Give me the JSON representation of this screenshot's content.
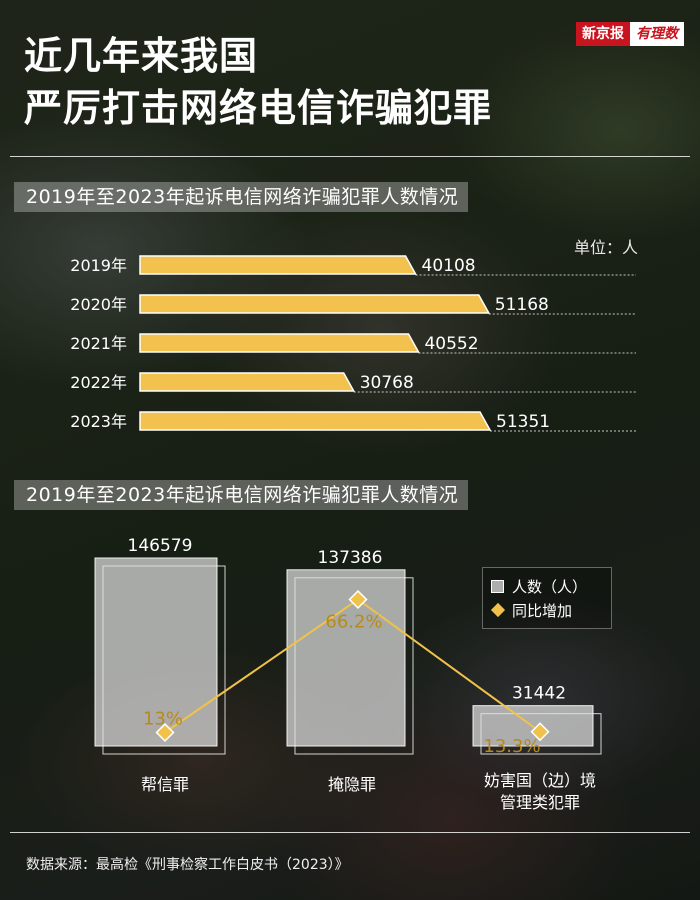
{
  "title_lines": [
    "近几年来我国",
    "严厉打击网络电信诈骗犯罪"
  ],
  "logo": {
    "part1": "新京报",
    "part2": "有理数"
  },
  "section1": {
    "title": "2019年至2023年起诉电信网络诈骗犯罪人数情况",
    "unit": "单位：人"
  },
  "section2": {
    "title": "2019年至2023年起诉电信网络诈骗犯罪人数情况"
  },
  "legend": {
    "count": "人数（人）",
    "yoy": "同比增加"
  },
  "categories_display": [
    "帮信罪",
    "掩隐罪",
    "妨害国（边）境\n管理类犯罪"
  ],
  "source": "数据来源：最高检《刑事检察工作白皮书（2023）》",
  "colors": {
    "bar_gold": "#f2c14e",
    "bar_edge": "#ffffff",
    "line": "#f0c24a",
    "pct_text": "#b88a1c"
  },
  "chart_data": [
    {
      "type": "bar",
      "orientation": "horizontal",
      "title": "2019年至2023年起诉电信网络诈骗犯罪人数情况",
      "unit": "单位：人",
      "categories": [
        "2019年",
        "2020年",
        "2021年",
        "2022年",
        "2023年"
      ],
      "values": [
        40108,
        51168,
        40552,
        30768,
        51351
      ]
    },
    {
      "type": "bar",
      "title": "2019年至2023年起诉电信网络诈骗犯罪人数情况",
      "categories": [
        "帮信罪",
        "掩隐罪",
        "妨害国（边）境管理类犯罪"
      ],
      "series": [
        {
          "name": "人数（人）",
          "type": "bar",
          "values": [
            146579,
            137386,
            31442
          ]
        },
        {
          "name": "同比增加",
          "type": "line",
          "values": [
            13,
            66.2,
            13.3
          ],
          "labels": [
            "13%",
            "66.2%",
            "13.3%"
          ]
        }
      ]
    }
  ]
}
